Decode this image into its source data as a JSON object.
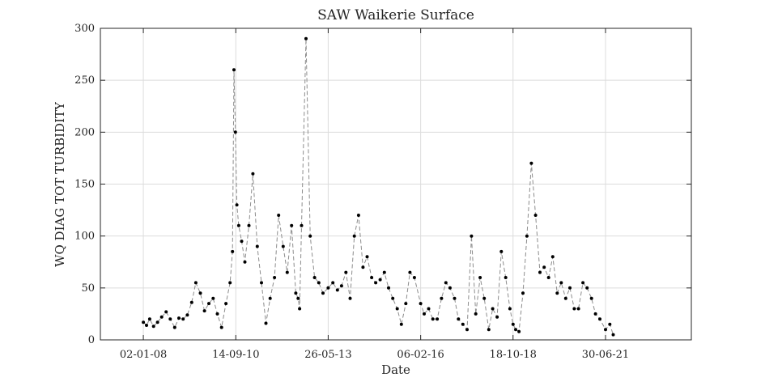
{
  "chart_data": {
    "type": "line",
    "title": "SAW Waikerie Surface",
    "xlabel": "Date",
    "ylabel": "WQ DIAG TOT TURBIDITY",
    "x_ticks": [
      "02-01-08",
      "14-09-10",
      "26-05-13",
      "06-02-16",
      "18-10-18",
      "30-06-21"
    ],
    "y_ticks": [
      "0",
      "50",
      "100",
      "150",
      "200",
      "250",
      "300"
    ],
    "xlim": [
      "2006-10-01",
      "2024-01-01"
    ],
    "ylim": [
      0,
      300
    ],
    "grid": true,
    "series_color": "#000000",
    "series": [
      {
        "x": [
          "2008-01-02",
          "2008-02-05",
          "2008-03-10",
          "2008-04-20",
          "2008-06-01",
          "2008-07-15",
          "2008-09-01",
          "2008-10-15",
          "2008-12-01",
          "2009-01-15",
          "2009-03-01",
          "2009-04-15",
          "2009-06-01",
          "2009-07-15",
          "2009-09-01",
          "2009-10-15",
          "2009-12-01",
          "2010-01-15",
          "2010-03-01",
          "2010-04-15",
          "2010-06-01",
          "2010-07-15",
          "2010-08-10",
          "2010-08-25",
          "2010-09-10",
          "2010-09-25",
          "2010-10-15",
          "2010-11-15",
          "2010-12-20",
          "2011-02-01",
          "2011-03-15",
          "2011-05-01",
          "2011-06-15",
          "2011-08-01",
          "2011-09-15",
          "2011-11-01",
          "2011-12-15",
          "2012-02-01",
          "2012-03-15",
          "2012-05-01",
          "2012-06-15",
          "2012-07-10",
          "2012-07-25",
          "2012-08-15",
          "2012-10-01",
          "2012-11-15",
          "2013-01-01",
          "2013-02-15",
          "2013-04-01",
          "2013-05-26",
          "2013-07-15",
          "2013-09-01",
          "2013-10-15",
          "2013-12-01",
          "2014-01-15",
          "2014-03-01",
          "2014-04-15",
          "2014-06-01",
          "2014-07-15",
          "2014-09-01",
          "2014-10-15",
          "2014-12-01",
          "2015-01-15",
          "2015-03-01",
          "2015-04-15",
          "2015-06-01",
          "2015-07-15",
          "2015-09-01",
          "2015-10-15",
          "2015-12-01",
          "2016-02-06",
          "2016-03-15",
          "2016-05-01",
          "2016-06-15",
          "2016-08-01",
          "2016-09-15",
          "2016-11-01",
          "2016-12-15",
          "2017-02-01",
          "2017-03-15",
          "2017-05-01",
          "2017-06-15",
          "2017-08-01",
          "2017-09-15",
          "2017-11-01",
          "2017-12-15",
          "2018-02-01",
          "2018-03-15",
          "2018-05-01",
          "2018-06-15",
          "2018-08-01",
          "2018-09-15",
          "2018-10-18",
          "2018-11-15",
          "2018-12-20",
          "2019-02-01",
          "2019-03-15",
          "2019-05-01",
          "2019-06-15",
          "2019-08-01",
          "2019-09-15",
          "2019-11-01",
          "2019-12-15",
          "2020-02-01",
          "2020-03-15",
          "2020-05-01",
          "2020-06-15",
          "2020-08-01",
          "2020-09-15",
          "2020-11-01",
          "2020-12-15",
          "2021-02-01",
          "2021-03-15",
          "2021-05-01",
          "2021-06-30",
          "2021-08-15",
          "2021-09-20"
        ],
        "values": [
          17,
          14,
          20,
          13,
          17,
          22,
          27,
          20,
          12,
          21,
          20,
          24,
          36,
          55,
          45,
          28,
          35,
          40,
          25,
          12,
          35,
          55,
          85,
          260,
          200,
          130,
          110,
          95,
          75,
          110,
          160,
          90,
          55,
          16,
          40,
          60,
          120,
          90,
          65,
          110,
          45,
          40,
          30,
          110,
          290,
          100,
          60,
          55,
          45,
          50,
          55,
          48,
          52,
          65,
          40,
          100,
          120,
          70,
          80,
          60,
          55,
          58,
          65,
          50,
          40,
          30,
          15,
          35,
          65,
          60,
          35,
          25,
          30,
          20,
          20,
          40,
          55,
          50,
          40,
          20,
          15,
          10,
          100,
          25,
          60,
          40,
          10,
          30,
          22,
          85,
          60,
          30,
          15,
          10,
          8,
          45,
          100,
          170,
          120,
          65,
          70,
          60,
          80,
          45,
          55,
          40,
          50,
          30,
          30,
          55,
          50,
          40,
          25,
          20,
          10,
          15,
          5
        ]
      }
    ]
  }
}
